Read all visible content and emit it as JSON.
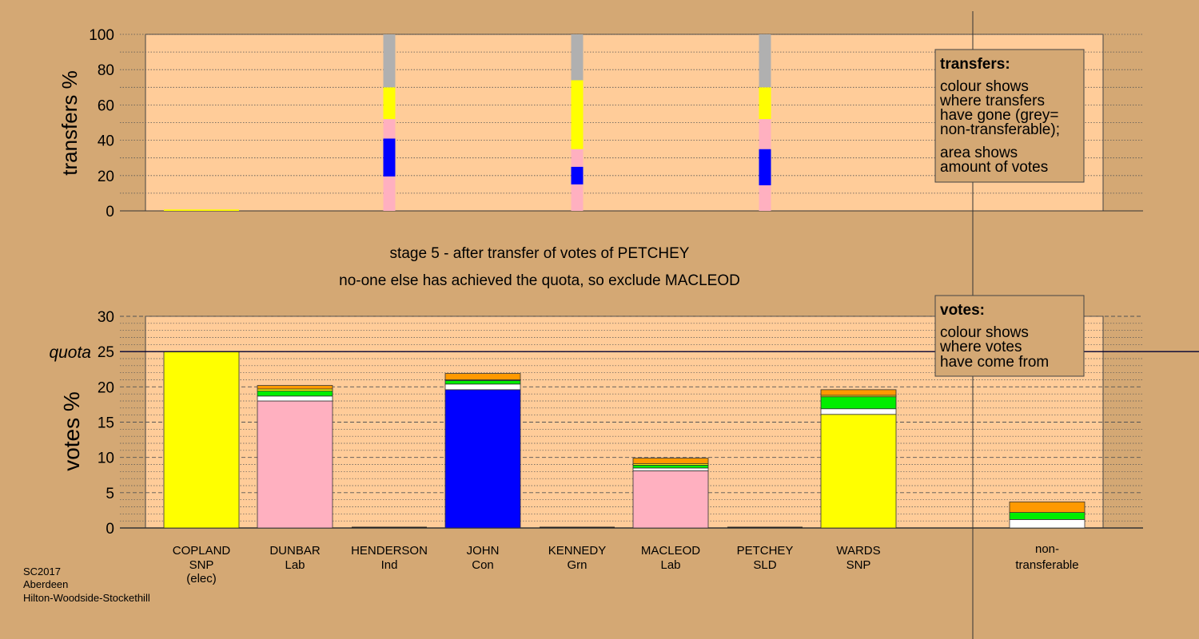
{
  "chart_data": [
    {
      "type": "bar",
      "stacked": true,
      "ylabel": "transfers %",
      "ylim": [
        0,
        100
      ],
      "yticks": [
        0,
        20,
        40,
        60,
        80,
        100
      ],
      "minor_grid_step": 10,
      "categories": [
        "COPLAND",
        "DUNBAR",
        "HENDERSON",
        "JOHN",
        "KENNEDY",
        "MACLEOD",
        "PETCHEY",
        "WARDS",
        "non-transferable"
      ],
      "columns": [
        {
          "category": "COPLAND",
          "style": "wide",
          "segments": [
            {
              "color": "#ffff00",
              "from": 0,
              "to": 0.8
            }
          ]
        },
        {
          "category": "HENDERSON",
          "style": "thin",
          "segments": [
            {
              "color": "#ffb0c0",
              "from": 0,
              "to": 19.5
            },
            {
              "color": "#0000ff",
              "from": 19.5,
              "to": 41
            },
            {
              "color": "#ffb0c0",
              "from": 41,
              "to": 52
            },
            {
              "color": "#ffff00",
              "from": 52,
              "to": 70
            },
            {
              "color": "#b0b0b0",
              "from": 70,
              "to": 100
            }
          ]
        },
        {
          "category": "KENNEDY",
          "style": "thin",
          "segments": [
            {
              "color": "#ffb0c0",
              "from": 0,
              "to": 15
            },
            {
              "color": "#0000ff",
              "from": 15,
              "to": 25
            },
            {
              "color": "#ffb0c0",
              "from": 25,
              "to": 35
            },
            {
              "color": "#ffff00",
              "from": 35,
              "to": 74
            },
            {
              "color": "#b0b0b0",
              "from": 74,
              "to": 100
            }
          ]
        },
        {
          "category": "PETCHEY",
          "style": "thin",
          "segments": [
            {
              "color": "#ffb0c0",
              "from": 0,
              "to": 14.5
            },
            {
              "color": "#0000ff",
              "from": 14.5,
              "to": 35
            },
            {
              "color": "#ffb0c0",
              "from": 35,
              "to": 52
            },
            {
              "color": "#ffff00",
              "from": 52,
              "to": 70
            },
            {
              "color": "#b0b0b0",
              "from": 70,
              "to": 100
            }
          ]
        }
      ],
      "legend": {
        "title": "transfers:",
        "lines": [
          "colour shows",
          "where transfers",
          "have gone (grey=",
          "non-transferable);"
        ],
        "lines2": [
          "area shows",
          "amount of votes"
        ]
      }
    },
    {
      "type": "bar",
      "stacked": true,
      "ylabel": "votes %",
      "ylim": [
        0,
        30
      ],
      "yticks": [
        0,
        5,
        10,
        15,
        20,
        25,
        30
      ],
      "minor_grid_step": 1,
      "quota": 25,
      "quota_label": "quota",
      "categories": [
        "COPLAND",
        "DUNBAR",
        "HENDERSON",
        "JOHN",
        "KENNEDY",
        "MACLEOD",
        "PETCHEY",
        "WARDS",
        "non-transferable"
      ],
      "bars": [
        {
          "category": "COPLAND",
          "segments": [
            {
              "color": "#ffff00",
              "value": 25
            }
          ]
        },
        {
          "category": "DUNBAR",
          "segments": [
            {
              "color": "#ffb0c0",
              "value": 18.0
            },
            {
              "color": "#ffffff",
              "value": 0.7
            },
            {
              "color": "#00ee00",
              "value": 0.7
            },
            {
              "color": "#ffff00",
              "value": 0.3
            },
            {
              "color": "#ff9900",
              "value": 0.5
            }
          ]
        },
        {
          "category": "HENDERSON",
          "segments": []
        },
        {
          "category": "JOHN",
          "segments": [
            {
              "color": "#0000ff",
              "value": 19.6
            },
            {
              "color": "#ffffff",
              "value": 0.8
            },
            {
              "color": "#00ee00",
              "value": 0.5
            },
            {
              "color": "#ffff00",
              "value": 0.1
            },
            {
              "color": "#ff9900",
              "value": 0.9
            }
          ]
        },
        {
          "category": "KENNEDY",
          "segments": []
        },
        {
          "category": "MACLEOD",
          "segments": [
            {
              "color": "#ffb0c0",
              "value": 8.1
            },
            {
              "color": "#ffffff",
              "value": 0.4
            },
            {
              "color": "#00ee00",
              "value": 0.4
            },
            {
              "color": "#ffff00",
              "value": 0.2
            },
            {
              "color": "#ff9900",
              "value": 0.8
            }
          ]
        },
        {
          "category": "PETCHEY",
          "segments": []
        },
        {
          "category": "WARDS",
          "segments": [
            {
              "color": "#ffff00",
              "value": 16.1
            },
            {
              "color": "#ffffff",
              "value": 0.8
            },
            {
              "color": "#00ee00",
              "value": 1.7
            },
            {
              "color": "#ffff00",
              "value": 0.2
            },
            {
              "color": "#ff9900",
              "value": 0.8
            }
          ]
        },
        {
          "category": "non-transferable",
          "segments": [
            {
              "color": "#ffffff",
              "value": 1.2
            },
            {
              "color": "#00ee00",
              "value": 1.0
            },
            {
              "color": "#ff9900",
              "value": 1.5
            }
          ]
        }
      ],
      "legend": {
        "title": "votes:",
        "lines": [
          "colour shows",
          "where votes",
          "have come from"
        ]
      }
    }
  ],
  "stage_text": {
    "line1": "stage 5 - after transfer of votes of PETCHEY",
    "line2": "no-one else has achieved the quota, so exclude MACLEOD"
  },
  "candidates": [
    {
      "name": "COPLAND",
      "party": "SNP",
      "note": "(elec)"
    },
    {
      "name": "DUNBAR",
      "party": "Lab"
    },
    {
      "name": "HENDERSON",
      "party": "Ind"
    },
    {
      "name": "JOHN",
      "party": "Con"
    },
    {
      "name": "KENNEDY",
      "party": "Grn"
    },
    {
      "name": "MACLEOD",
      "party": "Lab"
    },
    {
      "name": "PETCHEY",
      "party": "SLD"
    },
    {
      "name": "WARDS",
      "party": "SNP"
    }
  ],
  "nontransferable_label": [
    "non-",
    "transferable"
  ],
  "footer": [
    "SC2017",
    "Aberdeen",
    "Hilton-Woodside-Stockethill"
  ],
  "colors": {
    "background": "#d4a874",
    "plot_area": "#ffcc99",
    "snp": "#ffff00",
    "lab": "#ffb0c0",
    "con": "#0000ff",
    "grn": "#00ee00",
    "sld": "#ff9900",
    "non_transferable": "#b0b0b0"
  }
}
